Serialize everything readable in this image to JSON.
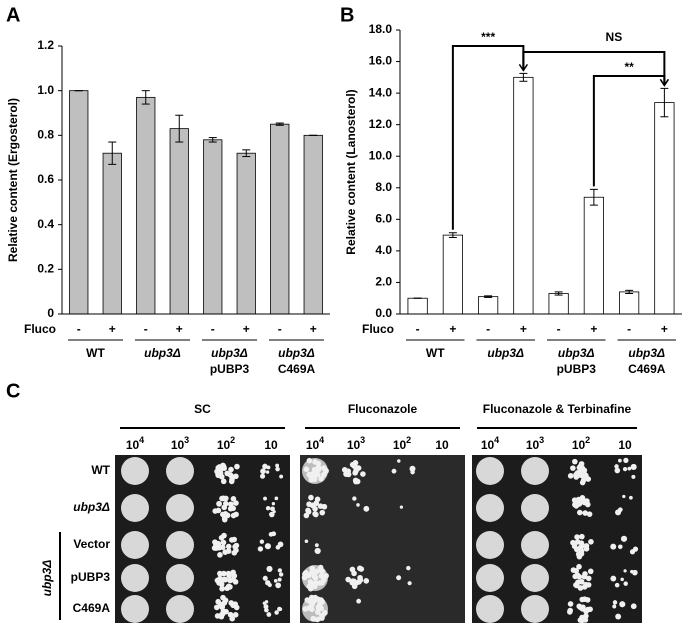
{
  "panel_labels": [
    "A",
    "B",
    "C"
  ],
  "chart_data": [
    {
      "type": "bar",
      "ylabel": "Relative content (Ergosterol)",
      "xlabel": "Fluco",
      "categories": [
        "-",
        "+",
        "-",
        "+",
        "-",
        "+",
        "-",
        "+"
      ],
      "groups": [
        [
          "WT"
        ],
        [
          "ubp3Δ"
        ],
        [
          "ubp3Δ",
          "pUBP3"
        ],
        [
          "ubp3Δ",
          "C469A"
        ]
      ],
      "values": [
        1.0,
        0.72,
        0.97,
        0.83,
        0.78,
        0.72,
        0.85,
        0.8
      ],
      "errors": [
        0,
        0.05,
        0.03,
        0.06,
        0.01,
        0.015,
        0.005,
        0
      ],
      "color": "#bfbfbf",
      "ylim": [
        0,
        1.2
      ],
      "yticks": [
        0,
        0.2,
        0.4,
        0.6,
        0.8,
        {
          "value": 1,
          "label": "1.0"
        },
        1.2
      ],
      "annotations": []
    },
    {
      "type": "bar",
      "ylabel": "Relative content (Lanosterol)",
      "xlabel": "Fluco",
      "categories": [
        "-",
        "+",
        "-",
        "+",
        "-",
        "+",
        "-",
        "+"
      ],
      "groups": [
        [
          "WT"
        ],
        [
          "ubp3Δ"
        ],
        [
          "ubp3Δ",
          "pUBP3"
        ],
        [
          "ubp3Δ",
          "C469A"
        ]
      ],
      "values": [
        1.0,
        5.0,
        1.1,
        15.0,
        1.3,
        7.4,
        1.4,
        13.4
      ],
      "errors": [
        0,
        0.15,
        0.05,
        0.25,
        0.1,
        0.5,
        0.1,
        0.9
      ],
      "color": "#ffffff",
      "ylim": [
        0,
        18
      ],
      "yticks": [
        {
          "value": 0,
          "label": "0.0"
        },
        {
          "value": 2,
          "label": "2.0"
        },
        {
          "value": 4,
          "label": "4.0"
        },
        {
          "value": 6,
          "label": "6.0"
        },
        {
          "value": 8,
          "label": "8.0"
        },
        {
          "value": 10,
          "label": "10.0"
        },
        {
          "value": 12,
          "label": "12.0"
        },
        {
          "value": 14,
          "label": "14.0"
        },
        {
          "value": 16,
          "label": "16.0"
        },
        {
          "value": 18,
          "label": "18.0"
        }
      ],
      "annotations": [
        "***",
        "NS",
        "**"
      ]
    }
  ],
  "spot_assay": {
    "conditions": [
      "SC",
      "Fluconazole",
      "Fluconazole & Terbinafine"
    ],
    "dilutions": [
      [
        "10",
        "4"
      ],
      [
        "10",
        "3"
      ],
      [
        "10",
        "2"
      ],
      [
        "10",
        ""
      ]
    ],
    "rows": [
      "WT",
      "ubp3Δ",
      "Vector",
      "pUBP3",
      "C469A"
    ],
    "row_group": "ubp3Δ"
  }
}
